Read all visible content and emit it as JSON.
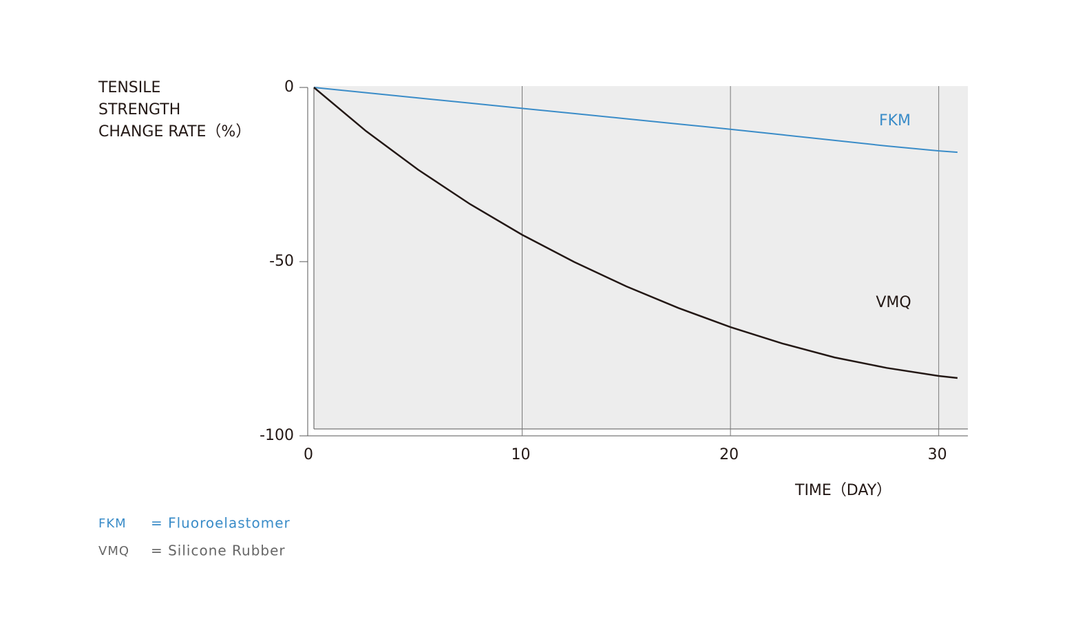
{
  "chart_data": {
    "type": "line",
    "y_label": [
      "TENSILE",
      "STRENGTH",
      "CHANGE RATE（%）"
    ],
    "x_label": "TIME（DAY）",
    "x": [
      0,
      2.5,
      5,
      7.5,
      10,
      12.5,
      15,
      17.5,
      20,
      22.5,
      25,
      27.5,
      30,
      30.9
    ],
    "series": [
      {
        "name": "FKM",
        "description": "= Fluoroelastomer",
        "color": "#3a8cc8",
        "values": [
          0,
          -1.5,
          -3,
          -4.5,
          -6,
          -7.5,
          -9,
          -10.5,
          -12,
          -13.6,
          -15.2,
          -16.8,
          -18.2,
          -18.6
        ]
      },
      {
        "name": "VMQ",
        "description": "= Silicone Rubber",
        "color": "#231815",
        "values": [
          0,
          -12.5,
          -23.6,
          -33.5,
          -42.3,
          -50.1,
          -57.1,
          -63.3,
          -68.8,
          -73.5,
          -77.5,
          -80.5,
          -82.8,
          -83.4
        ]
      }
    ],
    "xlim": [
      0,
      31.4
    ],
    "ylim": [
      -100,
      0
    ],
    "xticks": [
      0,
      10,
      20,
      30
    ],
    "yticks": [
      0,
      -50,
      -100
    ],
    "grid": true
  }
}
